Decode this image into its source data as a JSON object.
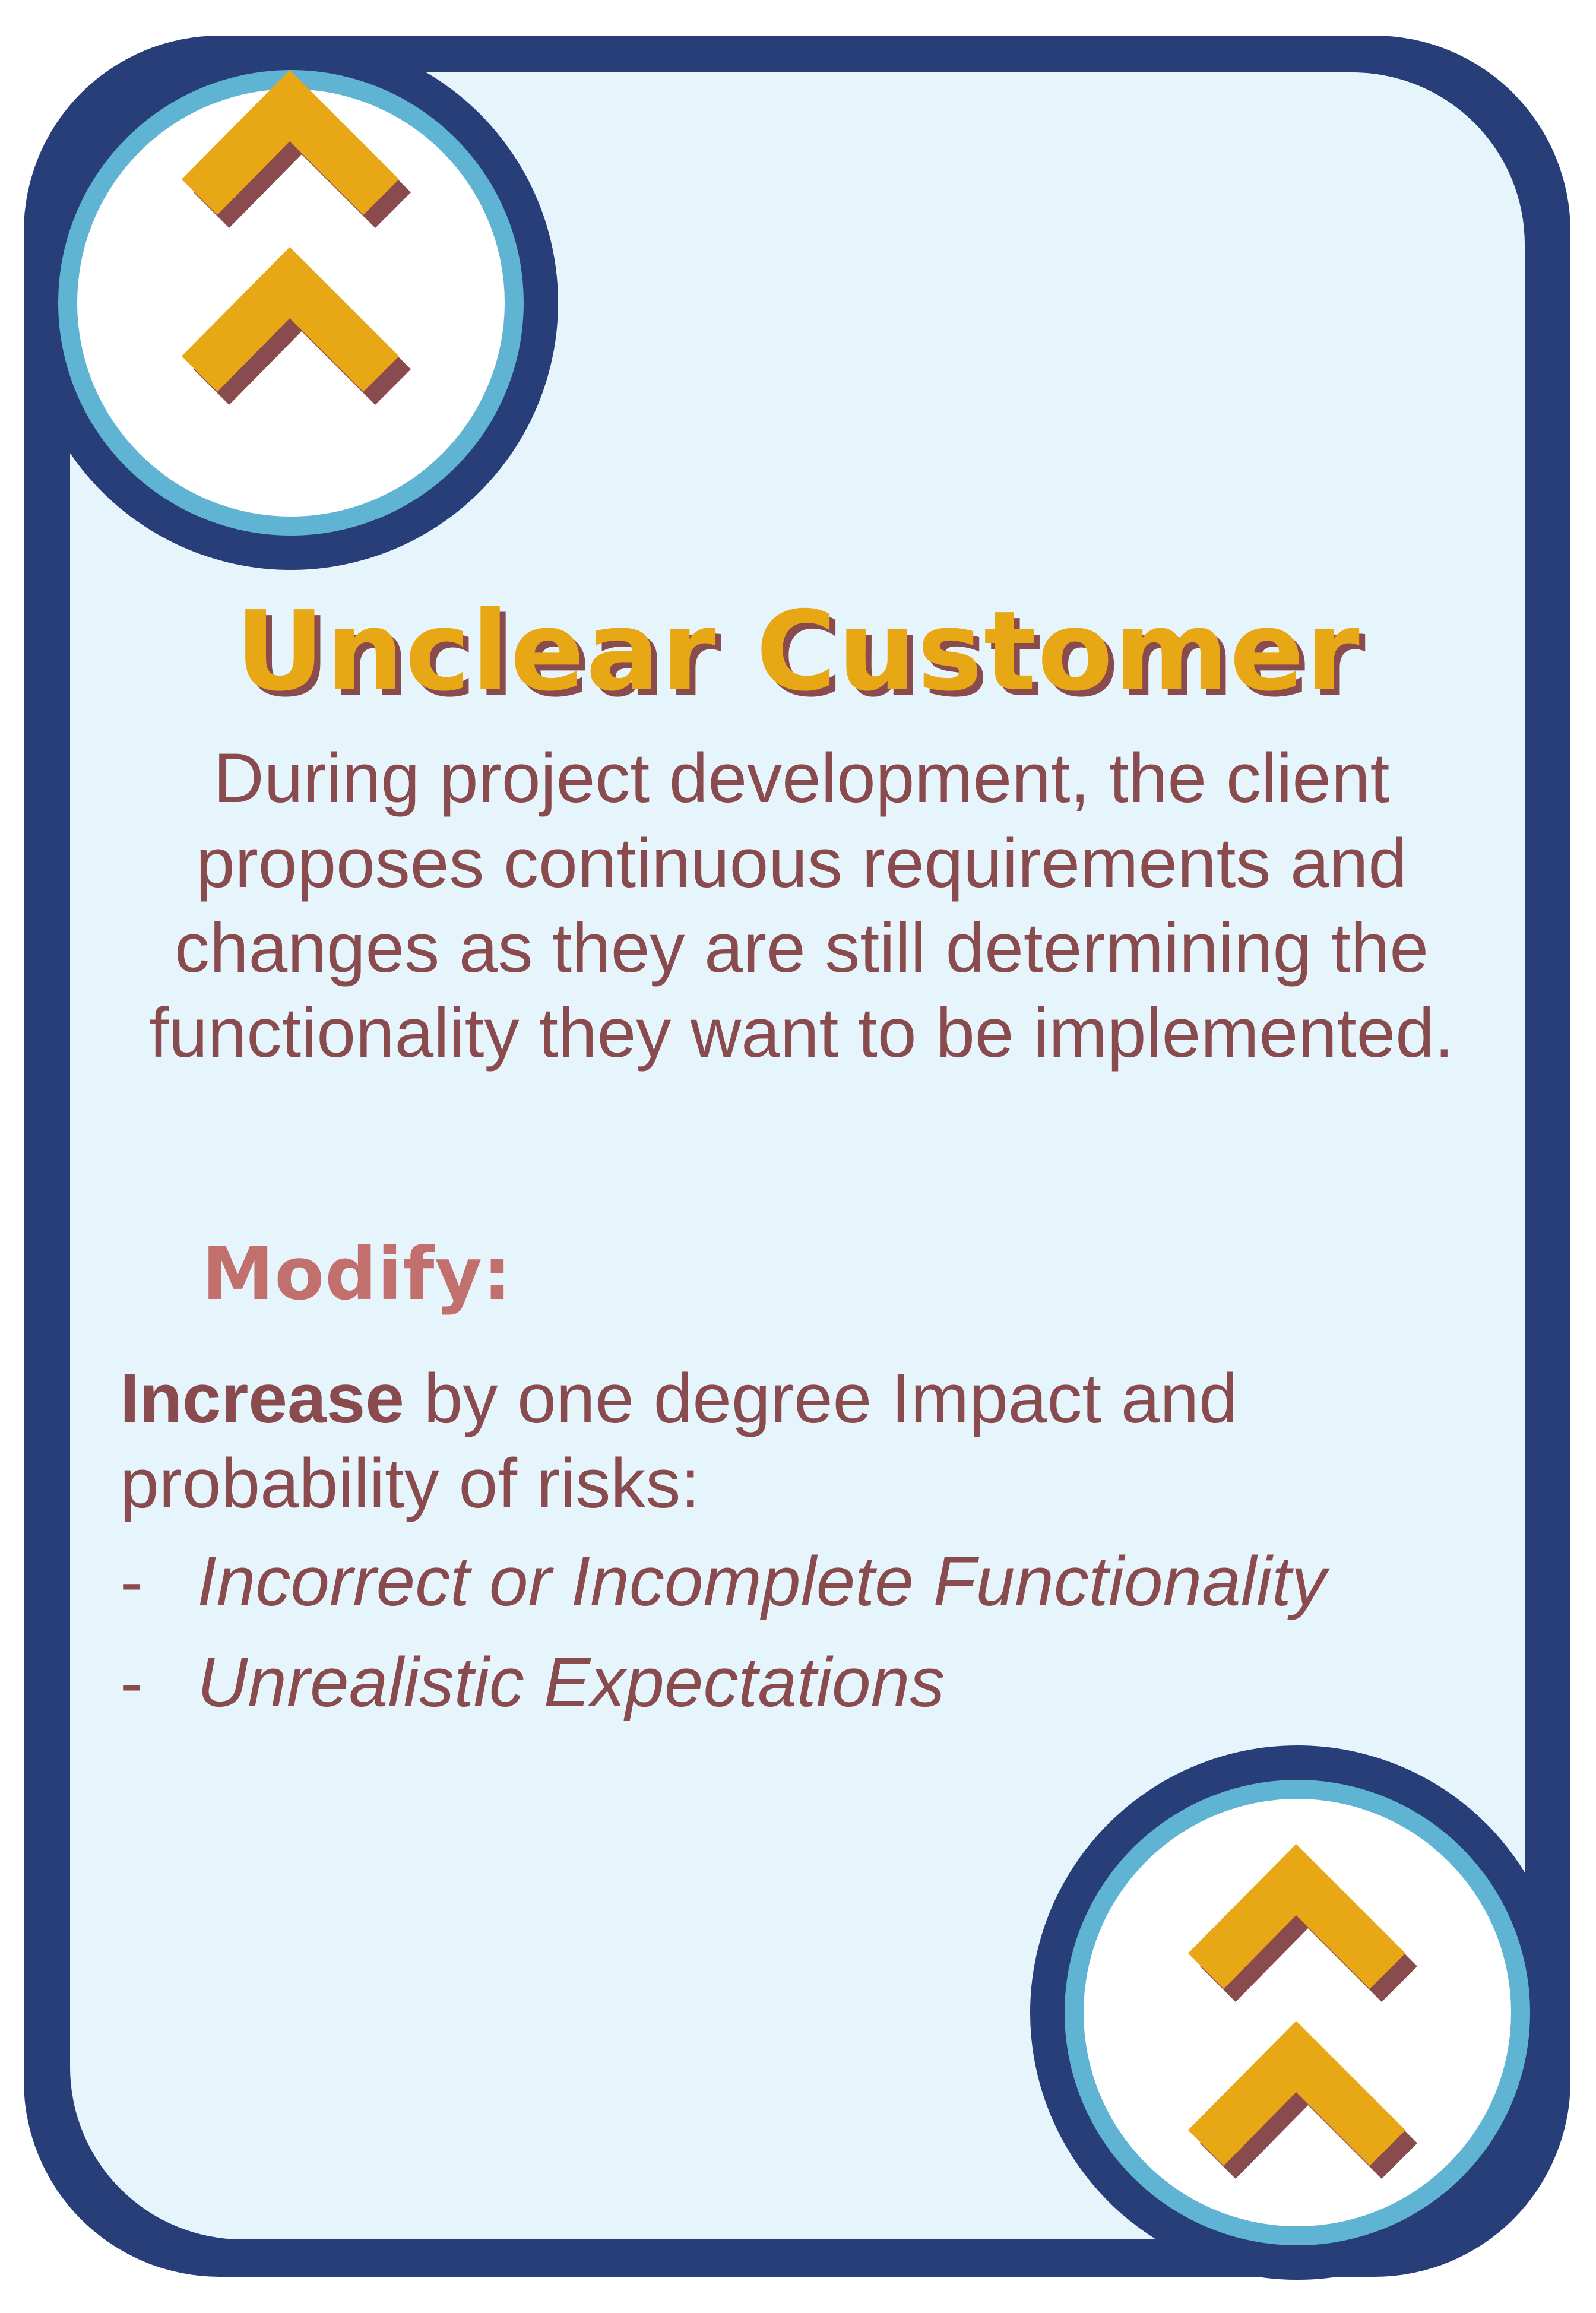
{
  "card": {
    "title": "Unclear Customer",
    "description": "During project development, the client proposes continuous requirements and changes as they are still determining the functionality they want to be implemented.",
    "modify_heading": "Modify:",
    "effect": {
      "verb": "Increase",
      "rest": " by one degree Impact and probability of risks:"
    },
    "risks": [
      "Incorrect or Incomplete Functionality",
      "Unrealistic Expectations"
    ],
    "risk_bullet": "-",
    "icon": "double-chevron-up-icon"
  },
  "colors": {
    "frame": "#283E79",
    "card_fill": "#E6F4FC",
    "badge_ring": "#5FB4D3",
    "chevron": "#E8A714",
    "chevron_shadow": "#8A4B4E",
    "text": "#8A4B4E",
    "modify_heading": "#C2706E"
  }
}
